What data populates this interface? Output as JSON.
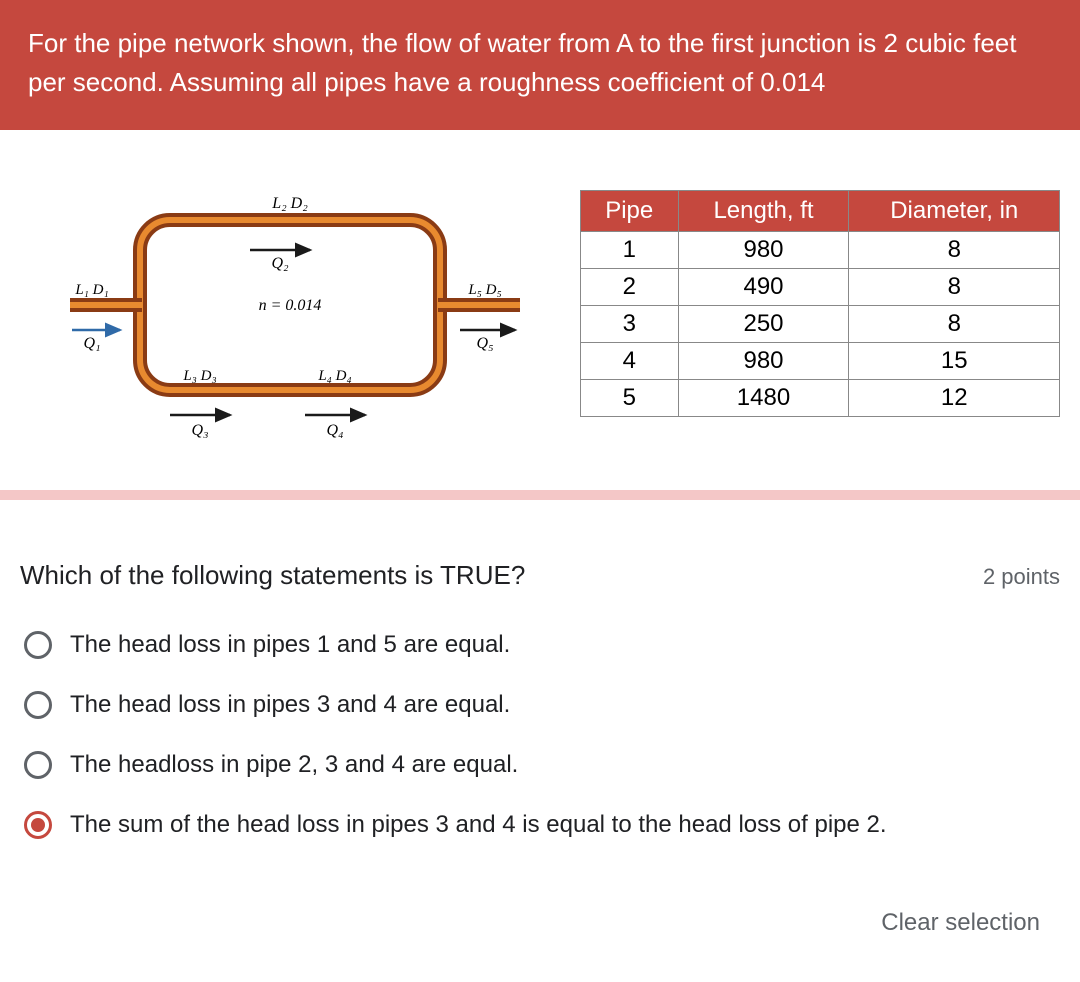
{
  "header": {
    "text": "For the pipe network shown, the flow of water from A to the first junction is 2 cubic feet per second. Assuming all pipes have a roughness coefficient of 0.014",
    "background_color": "#c5483e",
    "text_color": "#ffffff"
  },
  "diagram": {
    "type": "network",
    "roughness_label": "n = 0.014",
    "labels": {
      "top_edge": "L₂ D₂",
      "top_flow": "Q₂",
      "left_in_ld": "L₁ D₁",
      "left_in_q": "Q₁",
      "right_out_ld": "L₅ D₅",
      "right_out_q": "Q₅",
      "bottom_left_ld": "L₃ D₃",
      "bottom_left_q": "Q₃",
      "bottom_right_ld": "L₄ D₄",
      "bottom_right_q": "Q₄"
    },
    "colors": {
      "pipe_dark": "#8a3b14",
      "pipe_light": "#e88a2f",
      "arrow": "#1a1a1a",
      "arrow_blue": "#2f6aa8"
    }
  },
  "pipe_table": {
    "type": "table",
    "columns": [
      "Pipe",
      "Length, ft",
      "Diameter, in"
    ],
    "rows": [
      [
        "1",
        "980",
        "8"
      ],
      [
        "2",
        "490",
        "8"
      ],
      [
        "3",
        "250",
        "8"
      ],
      [
        "4",
        "980",
        "15"
      ],
      [
        "5",
        "1480",
        "12"
      ]
    ],
    "header_bg": "#c5483e",
    "header_text_color": "#ffffff",
    "border_color": "#888888",
    "cell_fontsize": 24
  },
  "divider_color": "#f4c7c7",
  "question": {
    "prompt": "Which of the following statements is TRUE?",
    "points_label": "2 points",
    "options": [
      "The head loss in pipes 1 and 5 are equal.",
      "The head loss in pipes 3 and 4 are equal.",
      "The headloss in pipe 2, 3 and 4 are equal.",
      "The sum of the head loss in pipes 3 and 4 is equal to the head loss of pipe 2."
    ],
    "selected_index": 3,
    "accent_color": "#c5483e",
    "unselected_border": "#5f6368",
    "clear_label": "Clear selection"
  }
}
